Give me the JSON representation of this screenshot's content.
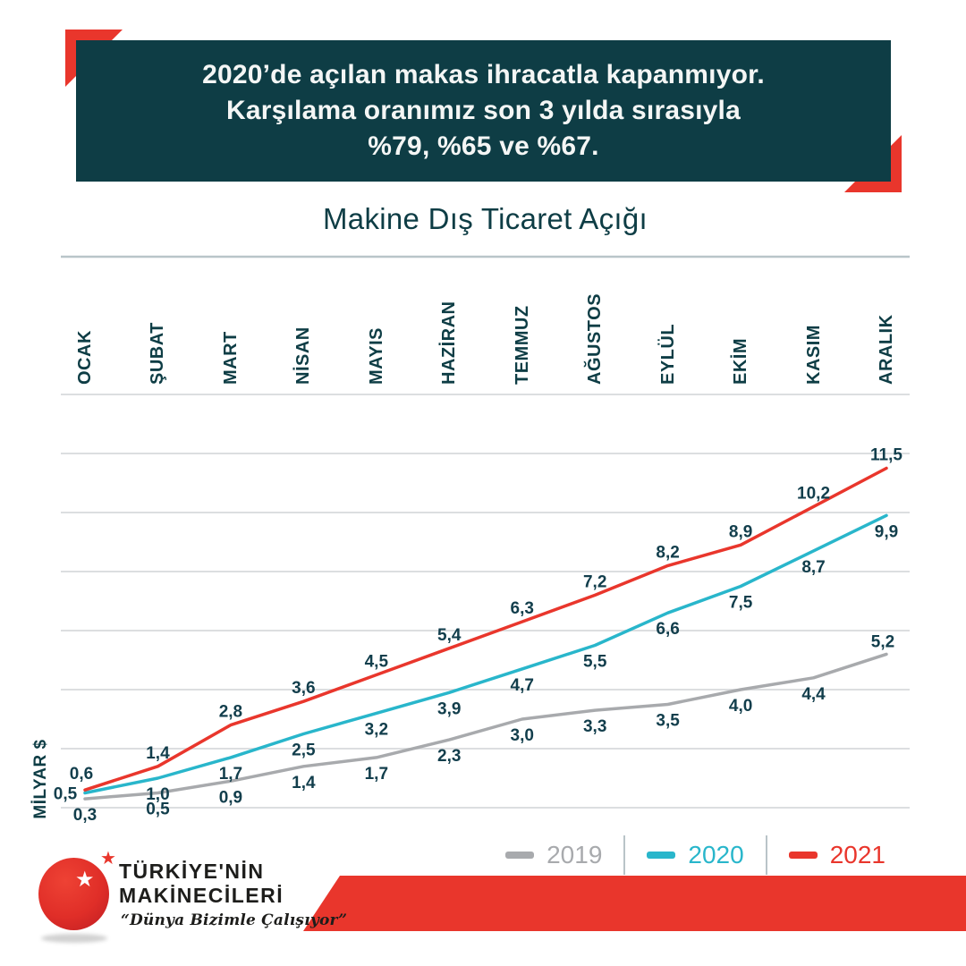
{
  "colors": {
    "teal": "#0e3d45",
    "red": "#e9362c",
    "cyan": "#29b6cb",
    "gray": "#a8aaad",
    "label_text": "#123e4c",
    "gridline": "#dcdee0",
    "rule": "#b9c5c9"
  },
  "header": {
    "line1": "2020’de açılan makas ihracatla kapanmıyor.",
    "line2": "Karşılama oranımız son 3 yılda sırasıyla",
    "line3": "%79, %65 ve %67."
  },
  "chart_data": {
    "type": "line",
    "title": "Makine Dış Ticaret Açığı",
    "ylabel": "MİLYAR $",
    "decimal_separator": ",",
    "categories": [
      "OCAK",
      "ŞUBAT",
      "MART",
      "NİSAN",
      "MAYIS",
      "HAZİRAN",
      "TEMMUZ",
      "AĞUSTOS",
      "EYLÜL",
      "EKİM",
      "KASIM",
      "ARALIK"
    ],
    "series": [
      {
        "name": "2019",
        "color": "#a8aaad",
        "values": [
          0.3,
          0.5,
          0.9,
          1.4,
          1.7,
          2.3,
          3.0,
          3.3,
          3.5,
          4.0,
          4.4,
          5.2
        ]
      },
      {
        "name": "2020",
        "color": "#29b6cb",
        "values": [
          0.5,
          1.0,
          1.7,
          2.5,
          3.2,
          3.9,
          4.7,
          5.5,
          6.6,
          7.5,
          8.7,
          9.9
        ]
      },
      {
        "name": "2021",
        "color": "#e9362c",
        "values": [
          0.6,
          1.4,
          2.8,
          3.6,
          4.5,
          5.4,
          6.3,
          7.2,
          8.2,
          8.9,
          10.2,
          11.5
        ]
      }
    ],
    "ylim": [
      0,
      14
    ],
    "grid_step": 2,
    "grid": "horizontal-only",
    "legend_position": "bottom-right",
    "data_labels": "on"
  },
  "legend": {
    "items": [
      {
        "label": "2019",
        "color": "#a8aaad"
      },
      {
        "label": "2020",
        "color": "#29b6cb"
      },
      {
        "label": "2021",
        "color": "#e9362c"
      }
    ]
  },
  "logo": {
    "line1": "TÜRKİYE'NİN",
    "line2": "MAKİNECİLERİ",
    "slogan": "“Dünya Bizimle Çalışıyor”"
  }
}
